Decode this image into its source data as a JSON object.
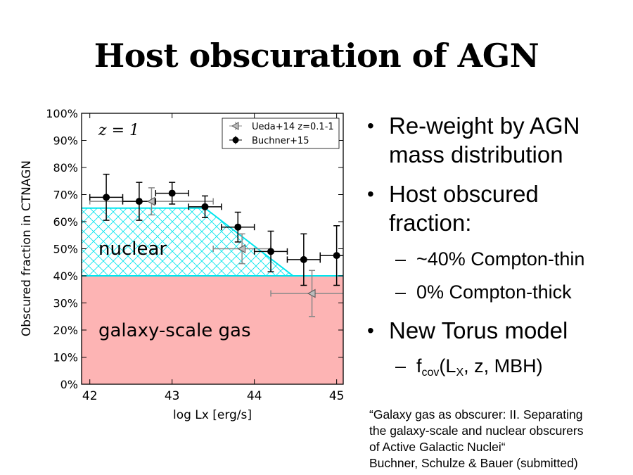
{
  "slide": {
    "title": "Host obscuration of AGN",
    "bullets": [
      {
        "text": "Re-weight by AGN mass distribution"
      },
      {
        "text": "Host obscured fraction:"
      }
    ],
    "sub_bullets": [
      "~40% Compton-thin",
      "0% Compton-thick"
    ],
    "bullet3": "New Torus model",
    "formula": {
      "f": "f",
      "cov": "cov",
      "open": "(L",
      "x": "X",
      "rest": ", z, MBH)"
    },
    "citation": [
      "“Galaxy gas as obscurer: II. Separating",
      "the galaxy-scale and nuclear obscurers",
      "of Active Galactic Nuclei“",
      "Buchner, Schulze & Bauer (submitted)"
    ]
  },
  "chart_data": {
    "type": "scatter",
    "xlabel": "log Lx [erg/s]",
    "ylabel": "Obscured fraction in CTNAGN",
    "xlim": [
      41.9,
      45.08
    ],
    "ylim": [
      0,
      1
    ],
    "x_ticks": [
      42,
      43,
      44,
      45
    ],
    "y_ticks": [
      "0%",
      "10%",
      "20%",
      "30%",
      "40%",
      "50%",
      "60%",
      "70%",
      "80%",
      "90%",
      "100%"
    ],
    "annotation": "z = 1",
    "region_labels": {
      "nuclear": "nuclear",
      "galaxy": "galaxy-scale gas"
    },
    "galaxy_fraction": 0.4,
    "nuclear_boundary": [
      [
        41.9,
        0.65
      ],
      [
        43.4,
        0.65
      ],
      [
        44.47,
        0.4
      ]
    ],
    "colors": {
      "galaxy": "#fdb4b4",
      "nuclear": "#00e5ee",
      "buchner": "#000000",
      "ueda": "#888888"
    },
    "legend_position": "top-right",
    "series": [
      {
        "name": "Ueda+14 z=0.1-1",
        "marker": "triangle-left",
        "points": [
          {
            "x": 42.75,
            "y": 0.675,
            "xerr": 0.75,
            "yerr": 0.05
          },
          {
            "x": 43.85,
            "y": 0.5,
            "xerr": 0.35,
            "yerr": 0.055
          },
          {
            "x": 44.7,
            "y": 0.335,
            "xerr": 0.5,
            "yerr": 0.085
          }
        ]
      },
      {
        "name": "Buchner+15",
        "marker": "circle",
        "points": [
          {
            "x": 42.2,
            "y": 0.69,
            "xerr": 0.2,
            "yerr": 0.085
          },
          {
            "x": 42.6,
            "y": 0.675,
            "xerr": 0.2,
            "yerr": 0.07
          },
          {
            "x": 43.0,
            "y": 0.705,
            "xerr": 0.2,
            "yerr": 0.04
          },
          {
            "x": 43.4,
            "y": 0.655,
            "xerr": 0.2,
            "yerr": 0.04
          },
          {
            "x": 43.8,
            "y": 0.58,
            "xerr": 0.2,
            "yerr": 0.055
          },
          {
            "x": 44.2,
            "y": 0.49,
            "xerr": 0.2,
            "yerr": 0.075
          },
          {
            "x": 44.6,
            "y": 0.46,
            "xerr": 0.2,
            "yerr": 0.095
          },
          {
            "x": 45.0,
            "y": 0.475,
            "xerr": 0.2,
            "yerr": 0.11
          }
        ]
      }
    ]
  }
}
